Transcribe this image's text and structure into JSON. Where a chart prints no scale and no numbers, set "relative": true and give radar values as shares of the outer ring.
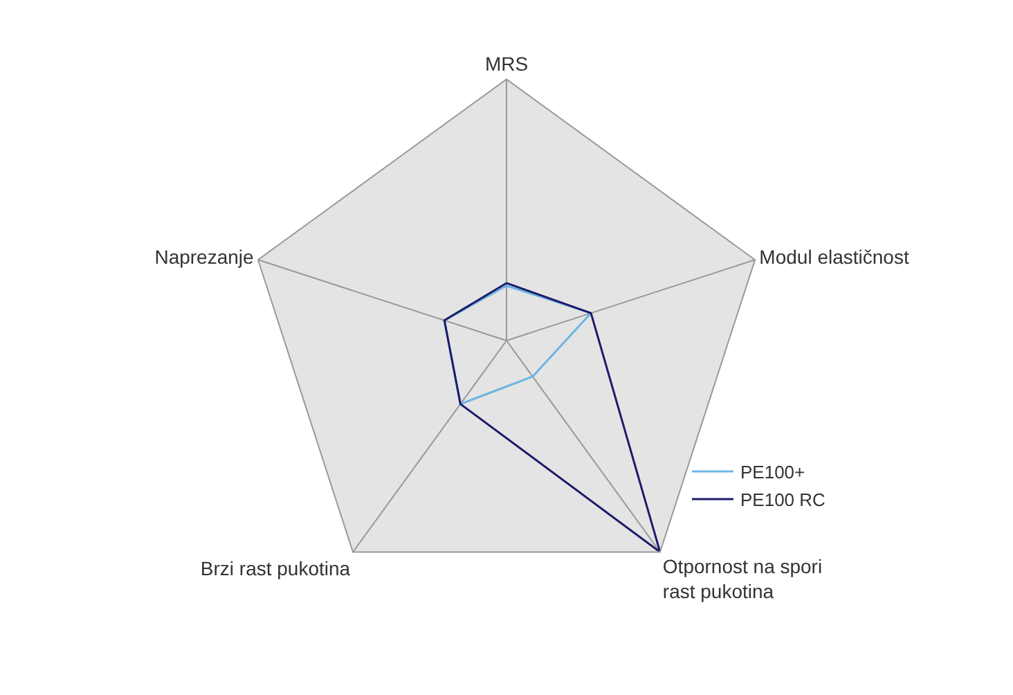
{
  "chart_data": {
    "type": "radar",
    "relative": true,
    "categories": [
      "MRS",
      "Modul elastičnost",
      "Otpornost na spori rast pukotina",
      "Brzi rast pukotina",
      "Naprezanje"
    ],
    "series": [
      {
        "name": "PE100+",
        "color": "#6cb4e4",
        "values": [
          0.21,
          0.34,
          0.17,
          0.3,
          0.25
        ]
      },
      {
        "name": "PE100 RC",
        "color": "#1c1c6b",
        "values": [
          0.22,
          0.34,
          1.0,
          0.3,
          0.25
        ]
      }
    ],
    "grid": true,
    "legend": "bottom right",
    "marker": "none",
    "line_style": "solid"
  }
}
